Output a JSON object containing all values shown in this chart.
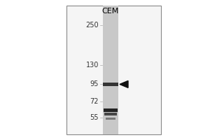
{
  "title": "CEM",
  "mw_markers": [
    250,
    130,
    95,
    72,
    55
  ],
  "band_main_mw": 95,
  "band_small1_mw": 62,
  "band_small2_mw": 58,
  "band_small3_mw": 54,
  "bg_color": "#f5f5f5",
  "outer_bg": "#ffffff",
  "lane_bg_color": "#c8c8c8",
  "band_color": "#1a1a1a",
  "marker_text_color": "#333333",
  "frame_color": "#888888",
  "arrow_color": "#111111",
  "title_fontsize": 8,
  "marker_fontsize": 7
}
